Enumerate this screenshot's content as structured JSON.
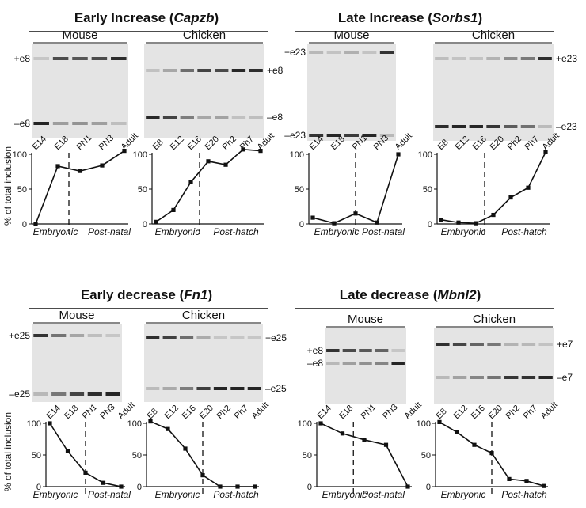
{
  "colors": {
    "ink": "#111111",
    "gel_light": "#e4e4e4",
    "gel_dark": "#c9c9c9",
    "band": "#1a1a1a"
  },
  "y_axis_label": "% of total inclusion",
  "chart_data": [
    {
      "type": "line",
      "title": "Early Increase (Capzb)",
      "title_plain": "Early Increase (",
      "title_italic": "Capzb",
      "title_close": ")",
      "mouse": {
        "species_label": "Mouse",
        "exon_labels": [
          "+e8",
          "–e8"
        ],
        "categories": [
          "E14",
          "E18",
          "PN1",
          "PN3",
          "Adult"
        ],
        "values": [
          0,
          83,
          76,
          84,
          105
        ],
        "phase_labels": [
          "Embryonic",
          "Post-natal"
        ],
        "boundary": "between E18 and PN1"
      },
      "chicken": {
        "species_label": "Chicken",
        "exon_labels": [
          "+e8",
          "–e8"
        ],
        "categories": [
          "E8",
          "E12",
          "E16",
          "E20",
          "Ph2",
          "Ph7",
          "Adult"
        ],
        "values": [
          3,
          20,
          60,
          90,
          85,
          107,
          105
        ],
        "phase_labels": [
          "Embryonic",
          "Post-hatch"
        ],
        "boundary": "between E16 and E20"
      },
      "ylim": [
        0,
        100
      ],
      "yticks": [
        0,
        50,
        100
      ]
    },
    {
      "type": "line",
      "title": "Late Increase (Sorbs1)",
      "title_plain": "Late Increase (",
      "title_italic": "Sorbs1",
      "title_close": ")",
      "mouse": {
        "species_label": "Mouse",
        "exon_labels": [
          "+e23",
          "–e23"
        ],
        "categories": [
          "E14",
          "E18",
          "PN1",
          "PN3",
          "Adult"
        ],
        "values": [
          9,
          1,
          15,
          2,
          100
        ],
        "phase_labels": [
          "Embryonic",
          "Post-natal"
        ],
        "boundary": "at PN1"
      },
      "chicken": {
        "species_label": "Chicken",
        "exon_labels": [
          "+e23",
          "–e23"
        ],
        "categories": [
          "E8",
          "E12",
          "E16",
          "E20",
          "Ph2",
          "Ph7",
          "Adult"
        ],
        "values": [
          6,
          2,
          1,
          13,
          38,
          52,
          103
        ],
        "phase_labels": [
          "Embryonic",
          "Post-hatch"
        ],
        "boundary": "between E16 and E20"
      },
      "ylim": [
        0,
        100
      ],
      "yticks": [
        0,
        50,
        100
      ]
    },
    {
      "type": "line",
      "title": "Early decrease (Fn1)",
      "title_plain": "Early decrease (",
      "title_italic": "Fn1",
      "title_close": ")",
      "mouse": {
        "species_label": "Mouse",
        "exon_labels": [
          "+e25",
          "–e25"
        ],
        "categories": [
          "E14",
          "E18",
          "PN1",
          "PN3",
          "Adult"
        ],
        "values": [
          100,
          56,
          22,
          6,
          0
        ],
        "phase_labels": [
          "Embryonic",
          "Post-natal"
        ],
        "boundary": "at PN1"
      },
      "chicken": {
        "species_label": "Chicken",
        "exon_labels": [
          "+e25",
          "–e25"
        ],
        "categories": [
          "E8",
          "E12",
          "E16",
          "E20",
          "Ph2",
          "Ph7",
          "Adult"
        ],
        "values": [
          103,
          91,
          60,
          18,
          0,
          0,
          0
        ],
        "phase_labels": [
          "Embryonic",
          "Post-hatch"
        ],
        "boundary": "at E20"
      },
      "ylim": [
        0,
        100
      ],
      "yticks": [
        0,
        50,
        100
      ]
    },
    {
      "type": "line",
      "title": "Late decrease (Mbnl2)",
      "title_plain": "Late decrease (",
      "title_italic": "Mbnl2",
      "title_close": ")",
      "mouse": {
        "species_label": "Mouse",
        "exon_labels": [
          "+e8",
          "–e8"
        ],
        "categories": [
          "E14",
          "E18",
          "PN1",
          "PN3",
          "Adult"
        ],
        "values": [
          100,
          84,
          74,
          66,
          0
        ],
        "phase_labels": [
          "Embryonic",
          "Post-natal"
        ],
        "boundary": "between E18 and PN1"
      },
      "chicken": {
        "species_label": "Chicken",
        "exon_labels": [
          "+e7",
          "–e7"
        ],
        "categories": [
          "E8",
          "E12",
          "E16",
          "E20",
          "Ph2",
          "Ph7",
          "Adult"
        ],
        "values": [
          102,
          86,
          66,
          53,
          12,
          9,
          1
        ],
        "phase_labels": [
          "Embryonic",
          "Post-hatch"
        ],
        "boundary": "at E20"
      },
      "ylim": [
        0,
        100
      ],
      "yticks": [
        0,
        50,
        100
      ]
    }
  ]
}
